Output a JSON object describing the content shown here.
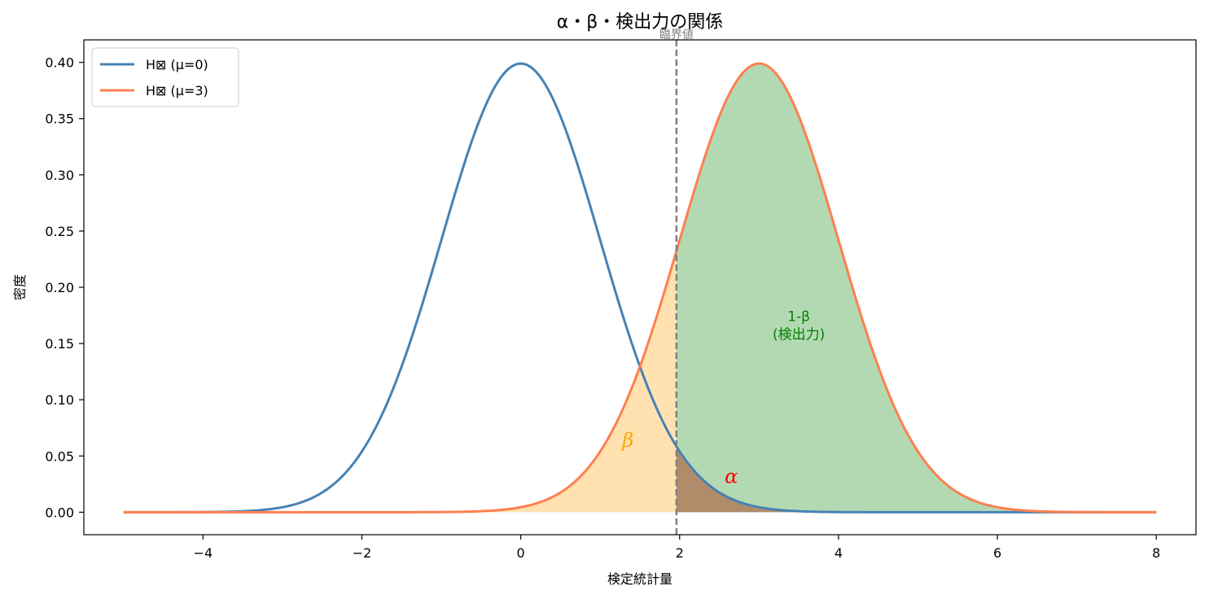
{
  "chart_data": {
    "type": "line",
    "title": "α・β・検出力の関係",
    "xlabel": "検定統計量",
    "ylabel": "密度",
    "xlim": [
      -5.5,
      8.5
    ],
    "ylim": [
      -0.02,
      0.42
    ],
    "xticks": [
      -4,
      -2,
      0,
      2,
      4,
      6,
      8
    ],
    "xtick_labels": [
      "−4",
      "−2",
      "0",
      "2",
      "4",
      "6",
      "8"
    ],
    "yticks": [
      0.0,
      0.05,
      0.1,
      0.15,
      0.2,
      0.25,
      0.3,
      0.35,
      0.4
    ],
    "ytick_labels": [
      "0.00",
      "0.05",
      "0.10",
      "0.15",
      "0.20",
      "0.25",
      "0.30",
      "0.35",
      "0.40"
    ],
    "grid": false,
    "legend_position": "top-left",
    "critical_value": 1.96,
    "critical_label": "臨界値",
    "x_range": [
      -5,
      8
    ],
    "series": [
      {
        "name": "H\u0000 (μ=0)",
        "distribution": "normal",
        "mean": 0,
        "sd": 1,
        "color": "#4682b4"
      },
      {
        "name": "H\u0000 (μ=3)",
        "distribution": "normal",
        "mean": 3,
        "sd": 1,
        "color": "#ff7f50"
      }
    ],
    "regions": [
      {
        "name": "beta",
        "label": "β",
        "label_x": 1.35,
        "label_y": 0.058,
        "color": "#ffa500",
        "fill": "#ffe2b0"
      },
      {
        "name": "alpha",
        "label": "α",
        "label_x": 2.65,
        "label_y": 0.026,
        "color": "#ff0000",
        "fill": "#b08c6a"
      },
      {
        "name": "power",
        "label": "1-β",
        "label2": "(検出力)",
        "label_x": 3.5,
        "label_y": 0.17,
        "color": "#008000",
        "fill": "#b3d9b3"
      }
    ],
    "legend_display": [
      "H⊠ (μ=0)",
      "H⊠ (μ=3)"
    ]
  }
}
